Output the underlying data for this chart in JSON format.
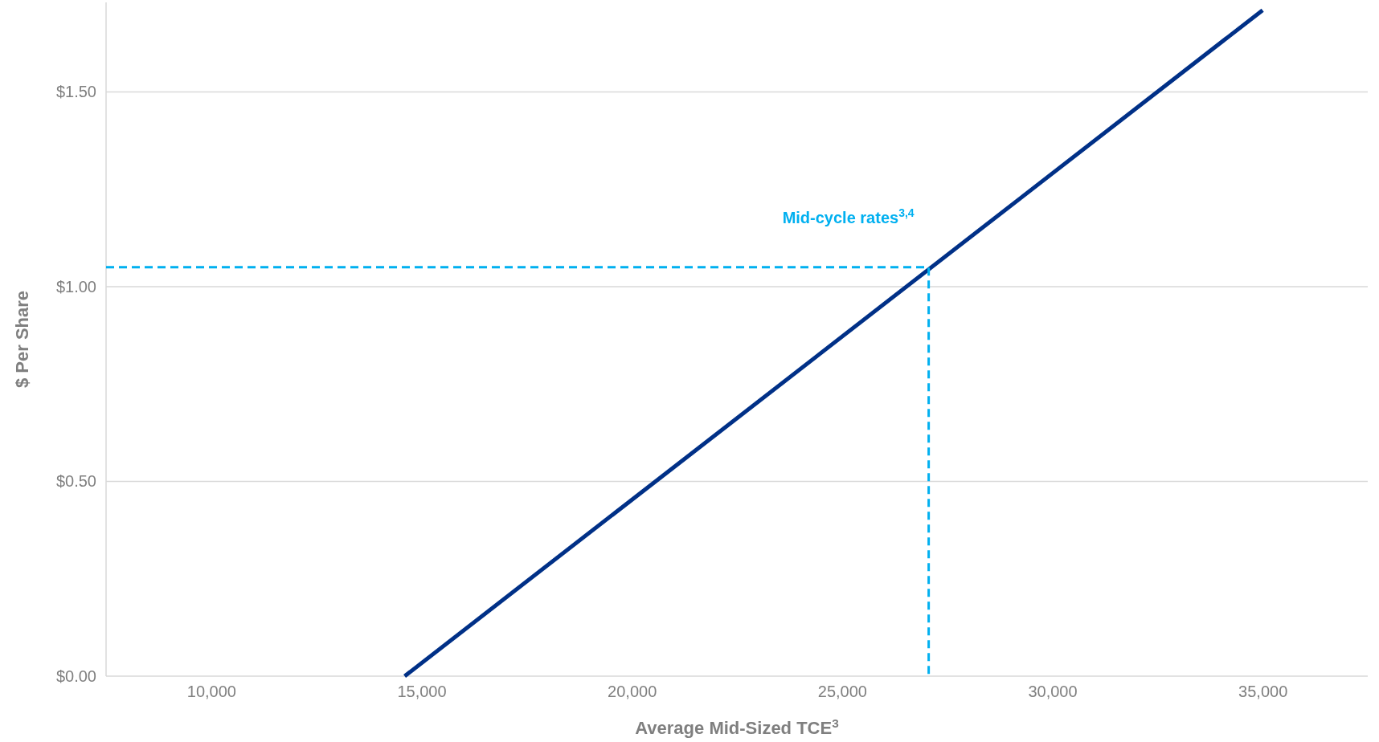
{
  "chart_data": {
    "type": "line",
    "xlabel": "Average Mid-Sized TCE$^{3}$",
    "ylabel": "$ Per Share",
    "annotations": [
      "Mid-cycle rates$^{3,4}$"
    ],
    "series": [
      {
        "x": [
          14600,
          35000
        ],
        "values": [
          0,
          1.71
        ],
        "color": "#003087",
        "line_style": "solid"
      },
      {
        "x": [
          7500,
          27060,
          27060
        ],
        "values": [
          1.05,
          1.05,
          0
        ],
        "color": "#00b0f0",
        "line_style": "dashed"
      }
    ],
    "xlim": [
      7500,
      37500
    ],
    "ylim": [
      0,
      1.73
    ],
    "xticks": [
      {
        "value": 10000,
        "label": "10,000"
      },
      {
        "value": 15000,
        "label": "15,000"
      },
      {
        "value": 20000,
        "label": "20,000"
      },
      {
        "value": 25000,
        "label": "25,000"
      },
      {
        "value": 30000,
        "label": "30,000"
      },
      {
        "value": 35000,
        "label": "35,000"
      }
    ],
    "yticks": [
      {
        "value": 0,
        "label": "$0.00"
      },
      {
        "value": 0.5,
        "label": "$0.50"
      },
      {
        "value": 1,
        "label": "$1.00"
      },
      {
        "value": 1.5,
        "label": "$1.50"
      }
    ],
    "grid": "y",
    "marker": "none"
  }
}
